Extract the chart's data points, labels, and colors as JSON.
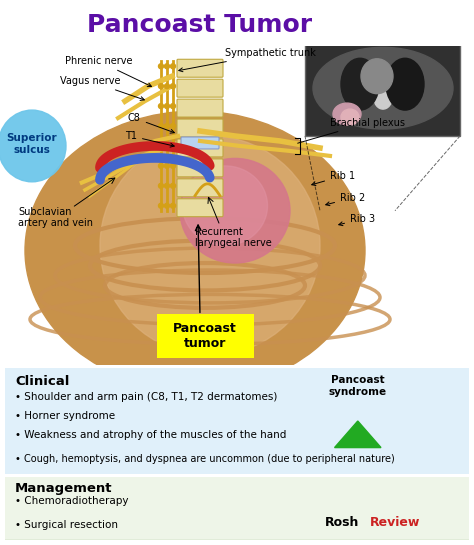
{
  "title": "Pancoast Tumor",
  "title_color": "#5B0EA6",
  "title_fontsize": 18,
  "background_color": "#FFFFFF",
  "superior_sulcus_label": "Superior\nsulcus",
  "superior_sulcus_color": "#6EC6EA",
  "pancoast_tumor_label": "Pancoast\ntumor",
  "pancoast_tumor_bg": "#FFFF00",
  "clinical_title": "Clinical",
  "clinical_bullets": [
    "• Shoulder and arm pain (C8, T1, T2 dermatomes)",
    "• Horner syndrome",
    "• Weakness and atrophy of the muscles of the hand",
    "• Cough, hemoptysis, and dyspnea are uncommon (due to peripheral nature)"
  ],
  "clinical_bg": "#E0F0FA",
  "clinical_border": "#A0C8E8",
  "pancoast_syndrome_label": "Pancoast\nsyndrome",
  "triangle_color": "#22AA22",
  "management_title": "Management",
  "management_bullets": [
    "• Chemoradiotherapy",
    "• Surgical resection"
  ],
  "management_bg": "#EEF5E8",
  "management_border": "#B0CCA0",
  "rosh_black": "Rosh",
  "rosh_red": "Review",
  "nerve_yellow": "#D4A017",
  "nerve_yellow2": "#E8C040",
  "spine_color": "#E8DCA0",
  "spine_edge": "#C0A840",
  "chest_color": "#C8924A",
  "chest_inner": "#DDB07A",
  "rib_color": "#C89050",
  "lung_color": "#D4788A",
  "artery_color": "#CC2222",
  "vein_color": "#4466CC",
  "ct_bg": "#303030",
  "fig_width": 4.74,
  "fig_height": 5.45,
  "dpi": 100
}
